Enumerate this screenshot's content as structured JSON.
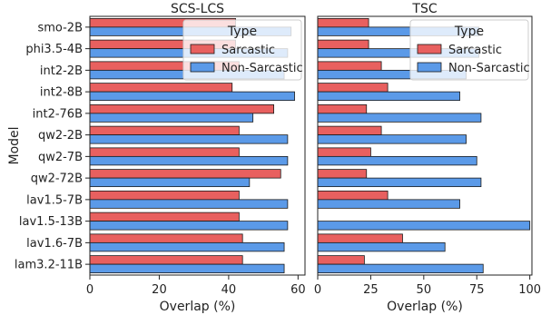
{
  "chart_data": {
    "type": "bar",
    "orientation": "horizontal",
    "ylabel": "Model",
    "categories": [
      "smo-2B",
      "phi3.5-4B",
      "int2-2B",
      "int2-8B",
      "int2-76B",
      "qw2-2B",
      "qw2-7B",
      "qw2-72B",
      "lav1.5-7B",
      "lav1.5-13B",
      "lav1.6-7B",
      "lam3.2-11B"
    ],
    "legend": {
      "title": "Type",
      "position": "upper-right",
      "entries": [
        "Sarcastic",
        "Non-Sarcastic"
      ]
    },
    "colors": {
      "Sarcastic": "#e8605f",
      "Non-Sarcastic": "#5b9ae8",
      "edge": "#1a1a1a"
    },
    "grid": false,
    "panels": [
      {
        "title": "SCS-LCS",
        "xlabel": "Overlap (%)",
        "xlim": [
          0,
          62
        ],
        "xticks": [
          "0",
          "20",
          "40",
          "60"
        ],
        "series": [
          {
            "name": "Sarcastic",
            "values": [
              42,
              42,
              43,
              41,
              53,
              43,
              43,
              55,
              43,
              43,
              44,
              44
            ]
          },
          {
            "name": "Non-Sarcastic",
            "values": [
              58,
              57,
              56,
              59,
              47,
              57,
              57,
              46,
              57,
              57,
              56,
              56
            ]
          }
        ]
      },
      {
        "title": "TSC",
        "xlabel": "Overlap (%)",
        "xlim": [
          0,
          101
        ],
        "xticks": [
          "0",
          "25",
          "50",
          "75",
          "100"
        ],
        "series": [
          {
            "name": "Sarcastic",
            "values": [
              24,
              24,
              30,
              33,
              23,
              30,
              25,
              23,
              33,
              0,
              40,
              22
            ]
          },
          {
            "name": "Non-Sarcastic",
            "values": [
              76,
              76,
              70,
              67,
              77,
              70,
              75,
              77,
              67,
              100,
              60,
              78
            ]
          }
        ]
      }
    ]
  }
}
